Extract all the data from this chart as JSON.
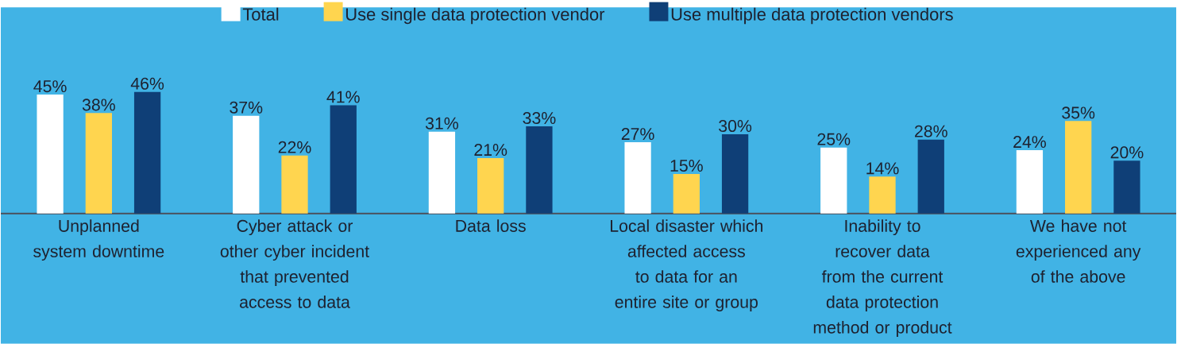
{
  "chart_data": {
    "type": "bar",
    "categories": [
      "Unplanned system downtime",
      "Cyber attack or other cyber incident that prevented access to data",
      "Data loss",
      "Local disaster which affected access to data for an entire site or group",
      "Inability to recover data from the current data protection method or product",
      "We have not experienced any of the above"
    ],
    "series": [
      {
        "name": "Total",
        "color": "#ffffff",
        "values": [
          45,
          37,
          31,
          27,
          25,
          24
        ],
        "value_labels": [
          "45%",
          "37%",
          "31%",
          "27%",
          "25%",
          "24%"
        ]
      },
      {
        "name": "Use single data protection vendor",
        "color": "#ffd54f",
        "values": [
          38,
          22,
          21,
          15,
          14,
          35
        ],
        "value_labels": [
          "38%",
          "22%",
          "21%",
          "15%",
          "14%",
          "35%"
        ]
      },
      {
        "name": "Use multiple data protection vendors",
        "color": "#0f3f77",
        "values": [
          46,
          41,
          33,
          30,
          28,
          20
        ],
        "value_labels": [
          "46%",
          "41%",
          "33%",
          "30%",
          "28%",
          "20%"
        ]
      }
    ],
    "legend": "top"
  }
}
